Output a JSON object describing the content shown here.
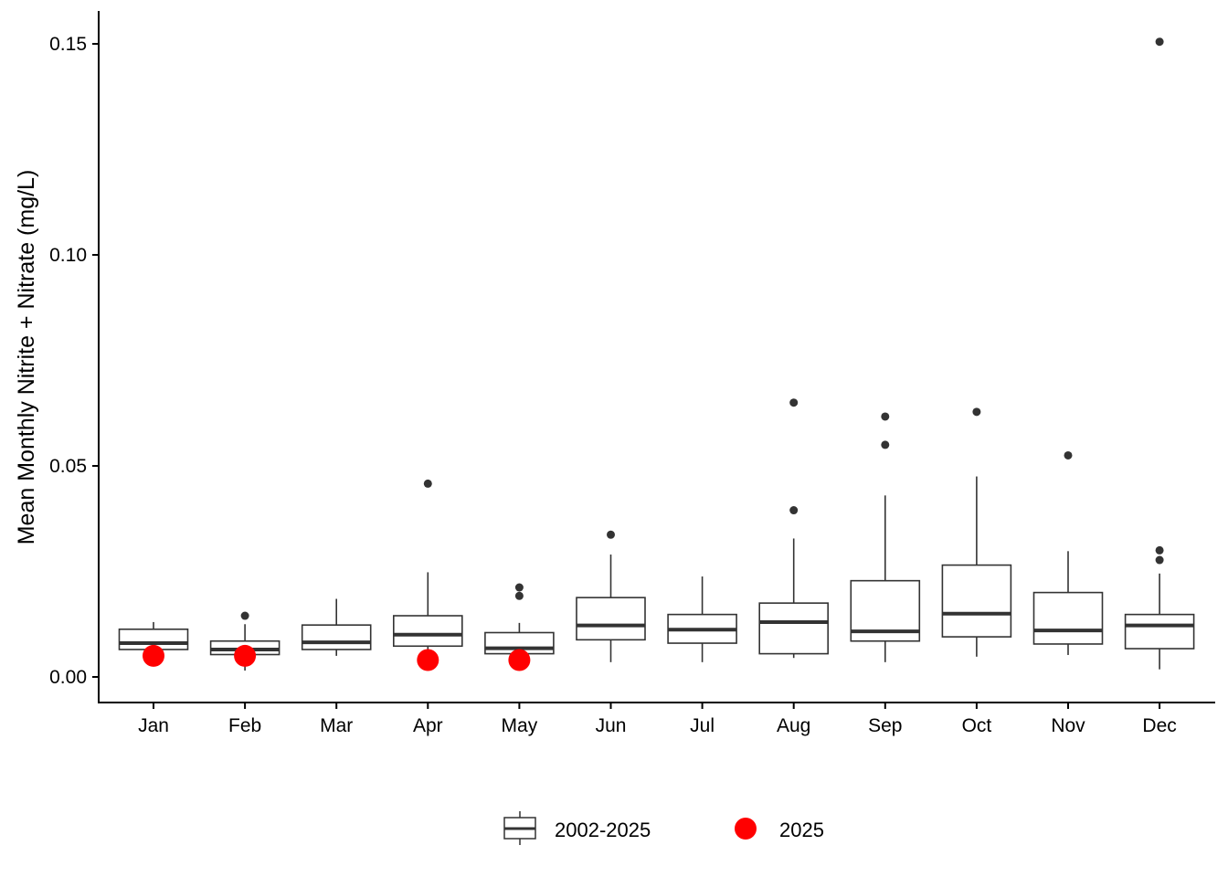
{
  "chart_data": {
    "type": "box",
    "ylabel": "Mean Monthly Nitrite + Nitrate (mg/L)",
    "xlabel": "",
    "ylim": [
      -0.006,
      0.158
    ],
    "yticks": [
      0.0,
      0.05,
      0.1,
      0.15
    ],
    "ytick_labels": [
      "0.00",
      "0.05",
      "0.10",
      "0.15"
    ],
    "categories": [
      "Jan",
      "Feb",
      "Mar",
      "Apr",
      "May",
      "Jun",
      "Jul",
      "Aug",
      "Sep",
      "Oct",
      "Nov",
      "Dec"
    ],
    "grid": false,
    "legend_position": "bottom",
    "legend": {
      "box_label": "2002-2025",
      "point_label": "2025"
    },
    "colors": {
      "box": "#333333",
      "outlier": "#333333",
      "highlight": "#ff0000"
    },
    "boxes": [
      {
        "month": "Jan",
        "min": 0.0065,
        "q1": 0.0065,
        "median": 0.008,
        "q3": 0.0113,
        "max": 0.013,
        "outliers": []
      },
      {
        "month": "Feb",
        "min": 0.0015,
        "q1": 0.0053,
        "median": 0.0065,
        "q3": 0.0085,
        "max": 0.0125,
        "outliers": [
          0.0145
        ]
      },
      {
        "month": "Mar",
        "min": 0.005,
        "q1": 0.0065,
        "median": 0.0082,
        "q3": 0.0123,
        "max": 0.0185,
        "outliers": []
      },
      {
        "month": "Apr",
        "min": 0.0055,
        "q1": 0.0073,
        "median": 0.01,
        "q3": 0.0145,
        "max": 0.0248,
        "outliers": [
          0.0458
        ]
      },
      {
        "month": "May",
        "min": 0.005,
        "q1": 0.0055,
        "median": 0.0068,
        "q3": 0.0105,
        "max": 0.0128,
        "outliers": [
          0.0192,
          0.0212
        ]
      },
      {
        "month": "Jun",
        "min": 0.0035,
        "q1": 0.0088,
        "median": 0.0122,
        "q3": 0.0188,
        "max": 0.029,
        "outliers": [
          0.0337
        ]
      },
      {
        "month": "Jul",
        "min": 0.0035,
        "q1": 0.008,
        "median": 0.0112,
        "q3": 0.0148,
        "max": 0.0238,
        "outliers": []
      },
      {
        "month": "Aug",
        "min": 0.0045,
        "q1": 0.0055,
        "median": 0.013,
        "q3": 0.0175,
        "max": 0.0328,
        "outliers": [
          0.0395,
          0.065
        ]
      },
      {
        "month": "Sep",
        "min": 0.0035,
        "q1": 0.0085,
        "median": 0.0108,
        "q3": 0.0228,
        "max": 0.043,
        "outliers": [
          0.055,
          0.0617
        ]
      },
      {
        "month": "Oct",
        "min": 0.0048,
        "q1": 0.0095,
        "median": 0.015,
        "q3": 0.0265,
        "max": 0.0475,
        "outliers": [
          0.0628
        ]
      },
      {
        "month": "Nov",
        "min": 0.0052,
        "q1": 0.0078,
        "median": 0.011,
        "q3": 0.02,
        "max": 0.0298,
        "outliers": [
          0.0525
        ]
      },
      {
        "month": "Dec",
        "min": 0.0018,
        "q1": 0.0067,
        "median": 0.0122,
        "q3": 0.0148,
        "max": 0.0245,
        "outliers": [
          0.0277,
          0.03,
          0.1505
        ]
      }
    ],
    "highlight_points": [
      {
        "month": "Jan",
        "value": 0.005
      },
      {
        "month": "Feb",
        "value": 0.005
      },
      {
        "month": "Apr",
        "value": 0.004
      },
      {
        "month": "May",
        "value": 0.004
      }
    ]
  }
}
